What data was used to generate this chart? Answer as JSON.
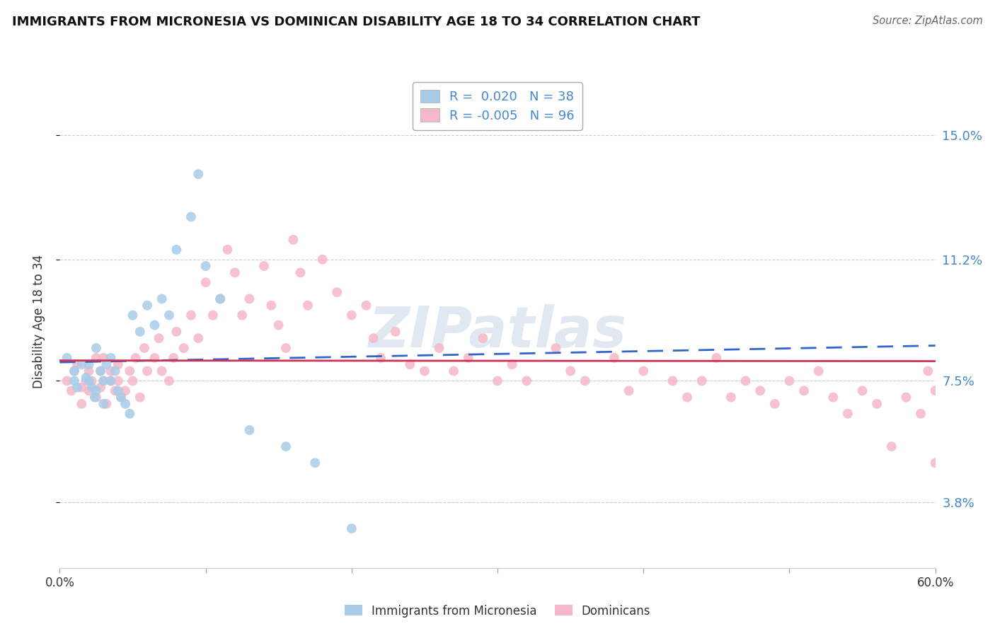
{
  "title": "IMMIGRANTS FROM MICRONESIA VS DOMINICAN DISABILITY AGE 18 TO 34 CORRELATION CHART",
  "source": "Source: ZipAtlas.com",
  "ylabel": "Disability Age 18 to 34",
  "xlim": [
    0.0,
    0.6
  ],
  "ylim": [
    0.018,
    0.168
  ],
  "ytick_values": [
    0.038,
    0.075,
    0.112,
    0.15
  ],
  "ytick_labels": [
    "3.8%",
    "7.5%",
    "11.2%",
    "15.0%"
  ],
  "legend1_label": "Immigrants from Micronesia",
  "legend2_label": "Dominicans",
  "R1": 0.02,
  "N1": 38,
  "R2": -0.005,
  "N2": 96,
  "color1": "#a8cce8",
  "color2": "#f5b8c8",
  "trendline1_color": "#3366cc",
  "trendline2_color": "#cc3355",
  "watermark_color": "#c8d8e8",
  "blue_x": [
    0.005,
    0.01,
    0.01,
    0.012,
    0.015,
    0.018,
    0.02,
    0.02,
    0.022,
    0.024,
    0.025,
    0.025,
    0.028,
    0.03,
    0.03,
    0.032,
    0.035,
    0.035,
    0.038,
    0.04,
    0.042,
    0.045,
    0.048,
    0.05,
    0.055,
    0.06,
    0.065,
    0.07,
    0.075,
    0.08,
    0.09,
    0.095,
    0.1,
    0.11,
    0.13,
    0.155,
    0.175,
    0.2
  ],
  "blue_y": [
    0.082,
    0.078,
    0.075,
    0.073,
    0.08,
    0.076,
    0.08,
    0.075,
    0.073,
    0.07,
    0.072,
    0.085,
    0.078,
    0.075,
    0.068,
    0.08,
    0.082,
    0.075,
    0.078,
    0.072,
    0.07,
    0.068,
    0.065,
    0.095,
    0.09,
    0.098,
    0.092,
    0.1,
    0.095,
    0.115,
    0.125,
    0.138,
    0.11,
    0.1,
    0.06,
    0.055,
    0.05,
    0.03
  ],
  "pink_x": [
    0.005,
    0.008,
    0.01,
    0.012,
    0.015,
    0.015,
    0.018,
    0.02,
    0.02,
    0.022,
    0.025,
    0.025,
    0.028,
    0.028,
    0.03,
    0.03,
    0.032,
    0.035,
    0.035,
    0.038,
    0.04,
    0.04,
    0.042,
    0.045,
    0.048,
    0.05,
    0.052,
    0.055,
    0.058,
    0.06,
    0.065,
    0.068,
    0.07,
    0.075,
    0.078,
    0.08,
    0.085,
    0.09,
    0.095,
    0.1,
    0.105,
    0.11,
    0.115,
    0.12,
    0.125,
    0.13,
    0.14,
    0.145,
    0.15,
    0.155,
    0.16,
    0.165,
    0.17,
    0.18,
    0.19,
    0.2,
    0.21,
    0.215,
    0.22,
    0.23,
    0.24,
    0.25,
    0.26,
    0.27,
    0.28,
    0.29,
    0.3,
    0.31,
    0.32,
    0.34,
    0.35,
    0.36,
    0.38,
    0.39,
    0.4,
    0.42,
    0.43,
    0.44,
    0.45,
    0.46,
    0.47,
    0.48,
    0.49,
    0.5,
    0.51,
    0.52,
    0.53,
    0.54,
    0.55,
    0.56,
    0.57,
    0.58,
    0.59,
    0.595,
    0.6,
    0.6
  ],
  "pink_y": [
    0.075,
    0.072,
    0.078,
    0.08,
    0.073,
    0.068,
    0.075,
    0.072,
    0.078,
    0.075,
    0.07,
    0.082,
    0.078,
    0.073,
    0.075,
    0.082,
    0.068,
    0.075,
    0.078,
    0.072,
    0.08,
    0.075,
    0.07,
    0.072,
    0.078,
    0.075,
    0.082,
    0.07,
    0.085,
    0.078,
    0.082,
    0.088,
    0.078,
    0.075,
    0.082,
    0.09,
    0.085,
    0.095,
    0.088,
    0.105,
    0.095,
    0.1,
    0.115,
    0.108,
    0.095,
    0.1,
    0.11,
    0.098,
    0.092,
    0.085,
    0.118,
    0.108,
    0.098,
    0.112,
    0.102,
    0.095,
    0.098,
    0.088,
    0.082,
    0.09,
    0.08,
    0.078,
    0.085,
    0.078,
    0.082,
    0.088,
    0.075,
    0.08,
    0.075,
    0.085,
    0.078,
    0.075,
    0.082,
    0.072,
    0.078,
    0.075,
    0.07,
    0.075,
    0.082,
    0.07,
    0.075,
    0.072,
    0.068,
    0.075,
    0.072,
    0.078,
    0.07,
    0.065,
    0.072,
    0.068,
    0.055,
    0.07,
    0.065,
    0.078,
    0.072,
    0.05
  ]
}
